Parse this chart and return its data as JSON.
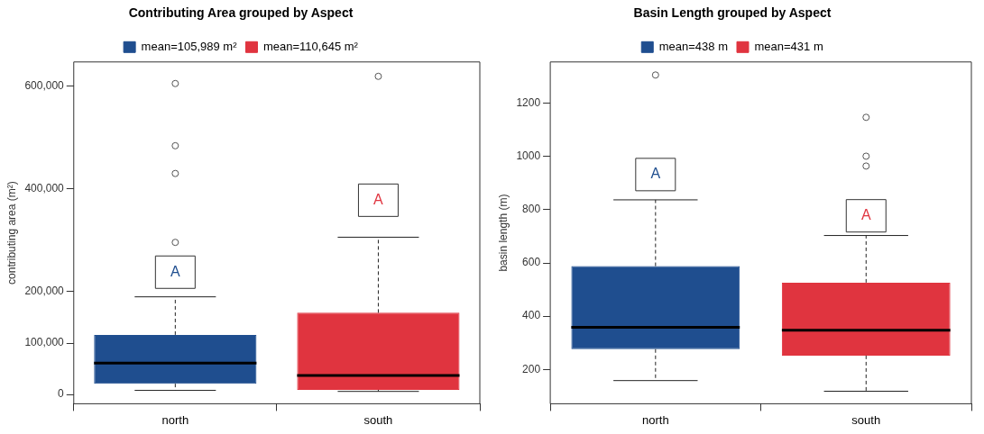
{
  "chart_data": [
    {
      "type": "box",
      "title": "Contributing Area grouped by Aspect",
      "ylabel": "contributing area (m²)",
      "categories": [
        "north",
        "south"
      ],
      "ylim": [
        -18000,
        647000
      ],
      "yticks": [
        {
          "value": 0,
          "label": "0"
        },
        {
          "value": 100000,
          "label": "100,000"
        },
        {
          "value": 200000,
          "label": "200,000"
        },
        {
          "value": 400000,
          "label": "400,000"
        },
        {
          "value": 600000,
          "label": "600,000"
        }
      ],
      "series": [
        {
          "name": "mean=105,989 m²",
          "color": "#1f4e8f",
          "boxes": [
            {
              "low": 8000,
              "q1": 21000,
              "median": 61000,
              "q3": 116000,
              "high": 190000,
              "outliers": [
                605000,
                484000,
                430000,
                296000
              ]
            },
            null
          ]
        },
        {
          "name": "mean=110,645 m²",
          "color": "#e0343f",
          "boxes": [
            null,
            {
              "low": 6000,
              "q1": 9000,
              "median": 37000,
              "q3": 159000,
              "high": 306000,
              "outliers": [
                619000
              ]
            }
          ]
        }
      ],
      "annotations": [
        {
          "text": "A",
          "x": "north",
          "y": 238000
        },
        {
          "text": "A",
          "x": "south",
          "y": 378000
        }
      ],
      "legend": "top",
      "marker": "circle",
      "grid": false
    },
    {
      "type": "box",
      "title": "Basin Length grouped by Aspect",
      "ylabel": "basin length (m)",
      "categories": [
        "north",
        "south"
      ],
      "ylim": [
        71,
        1355
      ],
      "yticks": [
        200,
        400,
        600,
        800,
        1000,
        1200
      ],
      "series": [
        {
          "name": "mean=438 m",
          "color": "#1f4e8f",
          "boxes": [
            {
              "low": 158,
              "q1": 276,
              "median": 358,
              "q3": 588,
              "high": 837,
              "outliers": [
                1306
              ]
            },
            null
          ]
        },
        {
          "name": "mean=431 m",
          "color": "#e0343f",
          "boxes": [
            null,
            {
              "low": 118,
              "q1": 252,
              "median": 347,
              "q3": 526,
              "high": 703,
              "outliers": [
                1147,
                1001,
                964
              ]
            }
          ]
        }
      ],
      "annotations": [
        {
          "text": "A",
          "x": "north",
          "y": 932
        },
        {
          "text": "A",
          "x": "south",
          "y": 777
        }
      ],
      "legend": "top",
      "marker": "circle",
      "grid": false
    }
  ]
}
